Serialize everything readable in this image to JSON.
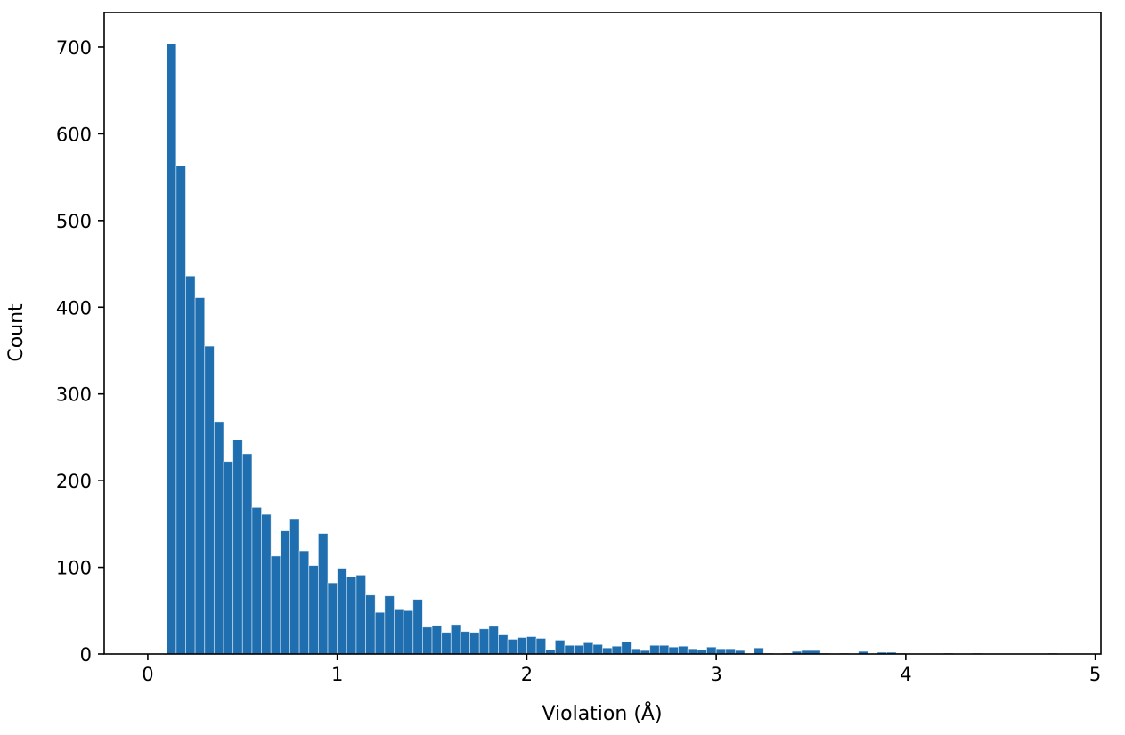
{
  "chart_data": {
    "type": "bar",
    "subtype": "histogram",
    "title": "",
    "xlabel": "Violation (Å)",
    "ylabel": "Count",
    "xlim": [
      -0.23,
      5.03
    ],
    "ylim": [
      0,
      740
    ],
    "xticks": [
      0,
      1,
      2,
      3,
      4,
      5
    ],
    "yticks": [
      0,
      100,
      200,
      300,
      400,
      500,
      600,
      700
    ],
    "grid": false,
    "bar_color": "#1f6fb0",
    "bin_width": 0.05,
    "bin_starts": [
      0.1,
      0.15,
      0.2,
      0.25,
      0.3,
      0.35,
      0.4,
      0.45,
      0.5,
      0.55,
      0.6,
      0.65,
      0.7,
      0.75,
      0.8,
      0.85,
      0.9,
      0.95,
      1.0,
      1.05,
      1.1,
      1.15,
      1.2,
      1.25,
      1.3,
      1.35,
      1.4,
      1.45,
      1.5,
      1.55,
      1.6,
      1.65,
      1.7,
      1.75,
      1.8,
      1.85,
      1.9,
      1.95,
      2.0,
      2.05,
      2.1,
      2.15,
      2.2,
      2.25,
      2.3,
      2.35,
      2.4,
      2.45,
      2.5,
      2.55,
      2.6,
      2.65,
      2.7,
      2.75,
      2.8,
      2.85,
      2.9,
      2.95,
      3.0,
      3.05,
      3.1,
      3.15,
      3.2,
      3.25,
      3.3,
      3.35,
      3.4,
      3.45,
      3.5,
      3.55,
      3.6,
      3.65,
      3.7,
      3.75,
      3.8,
      3.85,
      3.9,
      3.95,
      4.0,
      4.05,
      4.1,
      4.15,
      4.2,
      4.25,
      4.3,
      4.35,
      4.4,
      4.45,
      4.5,
      4.55,
      4.6,
      4.65,
      4.7,
      4.75
    ],
    "values": [
      704,
      563,
      436,
      411,
      355,
      268,
      222,
      247,
      231,
      169,
      161,
      113,
      142,
      156,
      119,
      102,
      139,
      82,
      99,
      89,
      91,
      68,
      48,
      67,
      52,
      50,
      63,
      31,
      33,
      25,
      34,
      26,
      25,
      29,
      32,
      22,
      17,
      19,
      20,
      18,
      5,
      16,
      10,
      10,
      13,
      11,
      7,
      9,
      14,
      6,
      4,
      10,
      10,
      8,
      9,
      6,
      5,
      8,
      6,
      6,
      4,
      0,
      7,
      1,
      0,
      1,
      3,
      4,
      4,
      1,
      0,
      1,
      0,
      3,
      0,
      2,
      2,
      1,
      0,
      0,
      0,
      0,
      1,
      0,
      0,
      1,
      0,
      0,
      0,
      0,
      0,
      0,
      0,
      1
    ]
  }
}
